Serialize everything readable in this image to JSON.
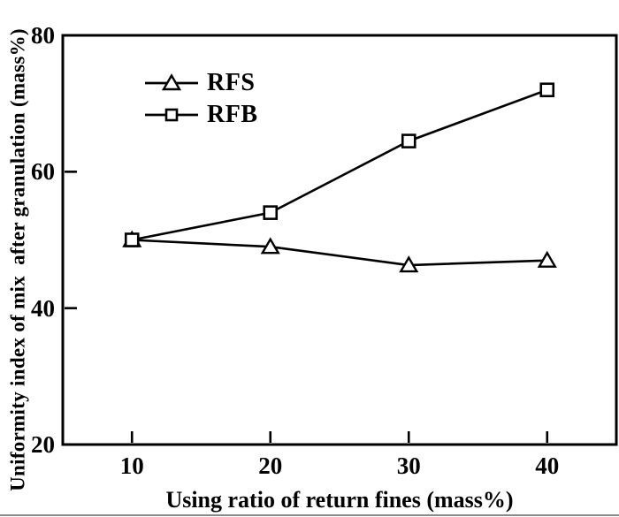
{
  "figure": {
    "colors": {
      "background": "#ffffff",
      "ink": "#000000",
      "marker_fill": "#ffffff",
      "bottom_rule": "#8a8a8a"
    }
  },
  "chart_data": {
    "type": "line",
    "title": "",
    "xlabel": "Using ratio of return fines (mass%)",
    "ylabel": "Uniformity index of mix  after granulation (mass%)",
    "x": [
      10,
      20,
      30,
      40
    ],
    "series": [
      {
        "name": "RFS",
        "marker": "triangle",
        "values": [
          50,
          49,
          46.3,
          47
        ]
      },
      {
        "name": "RFB",
        "marker": "square",
        "values": [
          50,
          54,
          64.5,
          72
        ]
      }
    ],
    "xlim": [
      5,
      45
    ],
    "ylim": [
      20,
      80
    ],
    "x_ticks": [
      10,
      20,
      30,
      40
    ],
    "y_ticks": [
      20,
      40,
      60,
      80
    ],
    "grid": false,
    "legend_position": "upper-left-inside"
  }
}
